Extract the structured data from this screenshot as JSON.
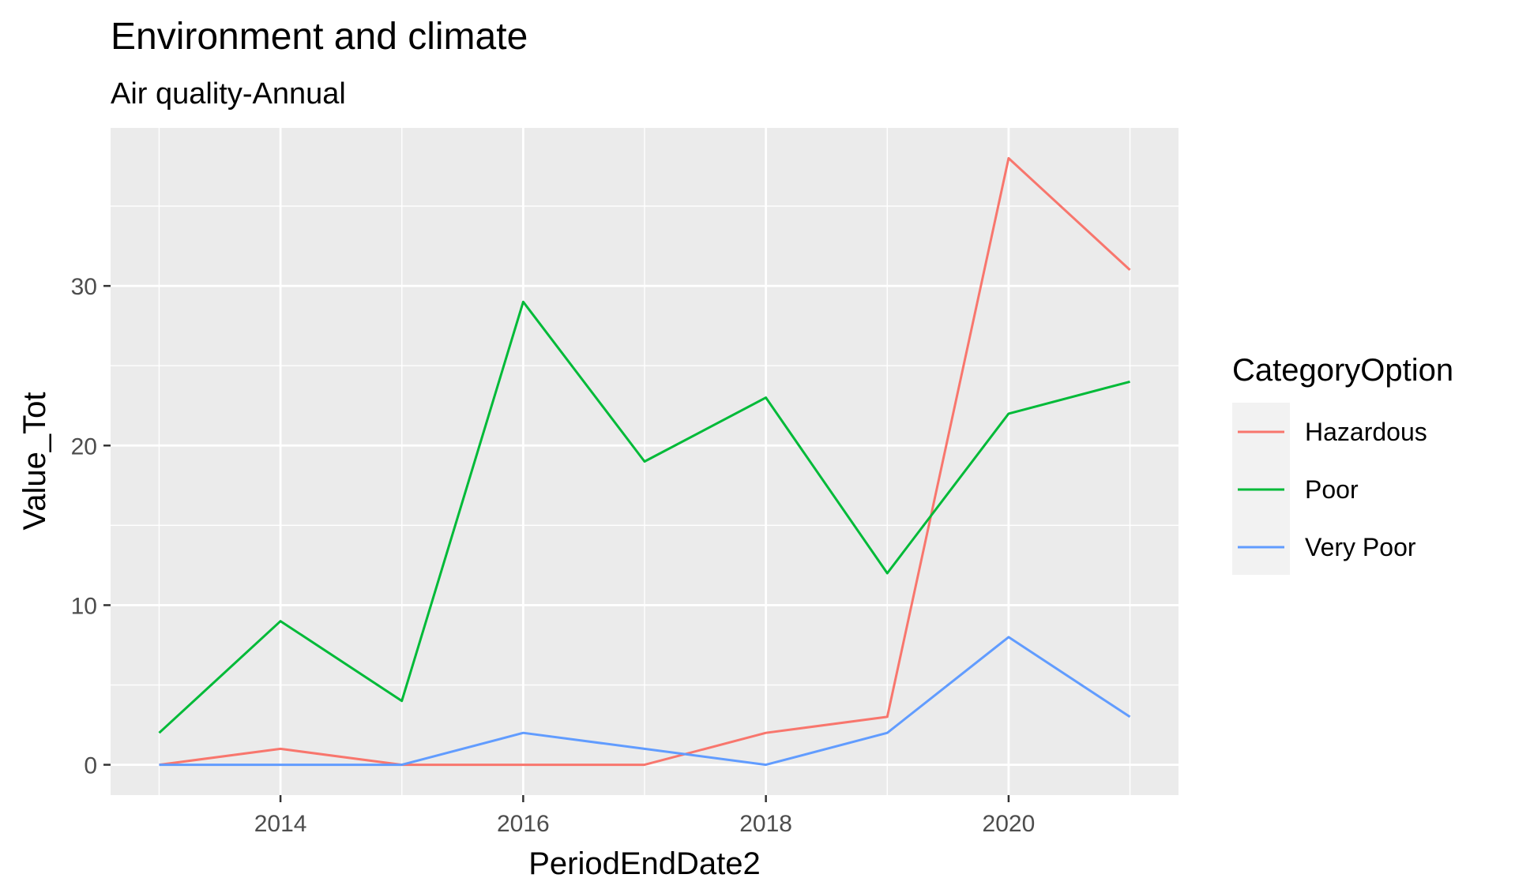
{
  "chart_data": {
    "type": "line",
    "title": "Environment and climate",
    "subtitle": "Air quality-Annual",
    "xlabel": "PeriodEndDate2",
    "ylabel": "Value_Tot",
    "x": [
      2013,
      2014,
      2015,
      2016,
      2017,
      2018,
      2019,
      2020,
      2021
    ],
    "xlim": [
      2012.6,
      2021.4
    ],
    "ylim": [
      -1.9,
      39.9
    ],
    "x_ticks": [
      2014,
      2016,
      2018,
      2020
    ],
    "x_tick_labels": [
      "2014",
      "2016",
      "2018",
      "2020"
    ],
    "y_ticks": [
      0,
      10,
      20,
      30
    ],
    "y_tick_labels": [
      "0",
      "10",
      "20",
      "30"
    ],
    "grid": true,
    "legend": {
      "title": "CategoryOption",
      "position": "right"
    },
    "series": [
      {
        "name": "Hazardous",
        "color": "#F8766D",
        "values": [
          0,
          1,
          0,
          0,
          0,
          2,
          3,
          38,
          31
        ]
      },
      {
        "name": "Poor",
        "color": "#00BA38",
        "values": [
          2,
          9,
          4,
          29,
          19,
          23,
          12,
          22,
          24
        ]
      },
      {
        "name": "Very Poor",
        "color": "#619CFF",
        "values": [
          0,
          0,
          0,
          2,
          1,
          0,
          2,
          8,
          3
        ]
      }
    ]
  }
}
